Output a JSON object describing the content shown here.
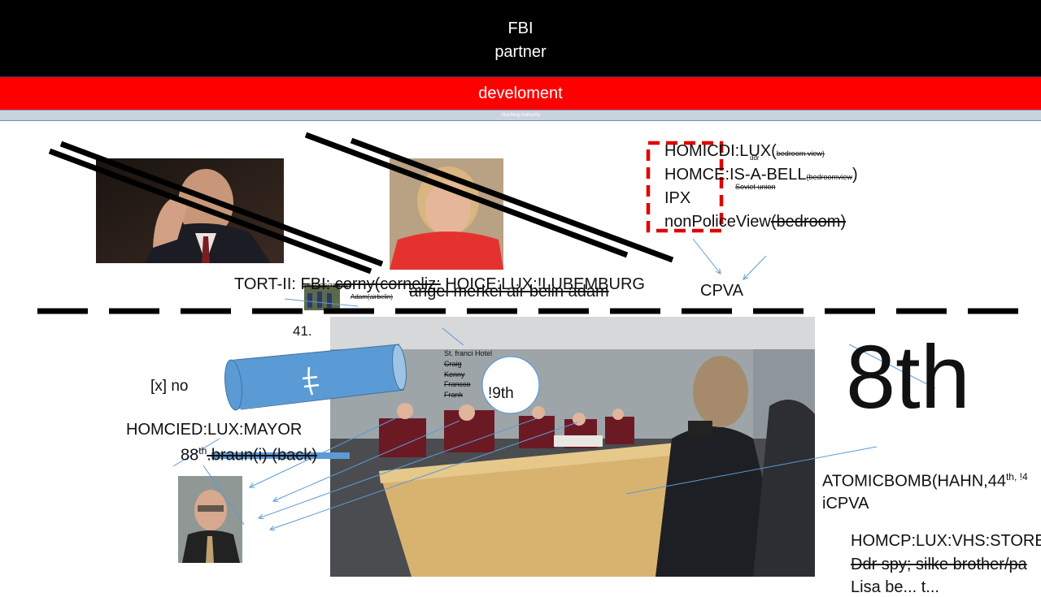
{
  "header": {
    "line1": "FBI",
    "line2": "partner"
  },
  "banner": {
    "label": "develoment",
    "sub_label": "Slashing Authority"
  },
  "notes": {
    "list1": "HOMICDI:LUX(",
    "list1_small": "bedroom view)",
    "list1_tiny": "ddr",
    "list2": "HOMCE:IS-A-BELL",
    "list2_small": "(bedroomview",
    "list2_close": ")",
    "list2_tiny": "Soviet union",
    "list3": "IPX",
    "list4a": "nonPoliceView",
    "list4b": "(bedroom)",
    "cpva": "CPVA",
    "tort_prefix": "TORT-II:",
    "tort_fbi": "FBI:",
    "tort_corny": "corny(corneliz:",
    "tort_hoice": "HOICE:LUX:!LUBEMBURG",
    "angel": "angel merkel air belin adam",
    "tiny_thumb": "GREGGS(TBRES)",
    "adam_small": "Adam(airbelin)",
    "num41": "41.",
    "no_option": "[x] no",
    "hotel_title": "St. franci Hotel",
    "hotel_names": [
      "Craig",
      "Kenny",
      "Francco",
      "Frank"
    ],
    "ninth": "!9th",
    "mayor": "HOMCIED:LUX:MAYOR",
    "eighty8": "88",
    "eighty8_sup": "th",
    "braun": ".braun(i) (back)",
    "eighth": "8th",
    "atomic": "ATOMICBOMB(HAHN,44",
    "atomic_sup": "th, !4",
    "icpva": "iCPVA",
    "vhs": "HOMCP:LUX:VHS:STORE",
    "ddr_spy": "Ddr spy; silke brother/pa",
    "cut_last": "Lisa be... t..."
  },
  "colors": {
    "header_bg": "#000000",
    "banner_red": "#ff0000",
    "cylinder_blue": "#5b9bd5",
    "arrow_blue": "#5b9bd5",
    "dash_red": "#e00000"
  }
}
